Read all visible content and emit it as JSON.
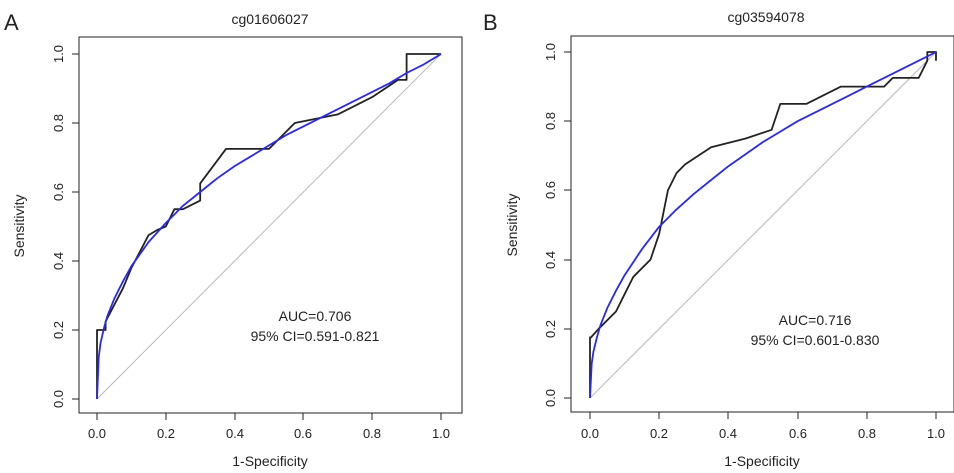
{
  "panels": [
    {
      "letter": "A",
      "chart_data": {
        "type": "line",
        "title": "cg01606027",
        "xlabel": "1-Specificity",
        "ylabel": "Sensitivity",
        "xlim": [
          0,
          1
        ],
        "ylim": [
          0,
          1
        ],
        "xticks": [
          "0.0",
          "0.2",
          "0.4",
          "0.6",
          "0.8",
          "1.0"
        ],
        "yticks": [
          "0.0",
          "0.2",
          "0.4",
          "0.6",
          "0.8",
          "1.0"
        ],
        "grid": false,
        "annotations": [
          "AUC=0.706",
          "95% CI=0.591-0.821"
        ],
        "colors": {
          "empirical": "#222222",
          "smoothed": "#2a2ae6",
          "reference": "#b8b8b8"
        },
        "series": [
          {
            "type": "step",
            "x": [
              0,
              0,
              0.003,
              0.003,
              0.025,
              0.025,
              0.075,
              0.1,
              0.15,
              0.175,
              0.2,
              0.225,
              0.25,
              0.3,
              0.3,
              0.375,
              0.425,
              0.5,
              0.575,
              0.7,
              0.8,
              0.875,
              0.9,
              0.9,
              1.0,
              1.0
            ],
            "y": [
              0,
              0.2,
              0.2,
              0.2,
              0.2,
              0.225,
              0.32,
              0.38,
              0.475,
              0.49,
              0.5,
              0.55,
              0.55,
              0.575,
              0.625,
              0.725,
              0.725,
              0.725,
              0.8,
              0.825,
              0.875,
              0.925,
              0.925,
              1.0,
              1.0,
              1.0
            ]
          },
          {
            "type": "smooth",
            "x": [
              0,
              0.005,
              0.01,
              0.02,
              0.03,
              0.05,
              0.075,
              0.1,
              0.15,
              0.2,
              0.25,
              0.3,
              0.35,
              0.4,
              0.45,
              0.5,
              0.55,
              0.6,
              0.65,
              0.7,
              0.75,
              0.8,
              0.85,
              0.9,
              0.95,
              1.0
            ],
            "y": [
              0,
              0.12,
              0.16,
              0.205,
              0.24,
              0.29,
              0.34,
              0.385,
              0.455,
              0.51,
              0.56,
              0.6,
              0.64,
              0.675,
              0.705,
              0.735,
              0.765,
              0.79,
              0.815,
              0.84,
              0.865,
              0.89,
              0.915,
              0.945,
              0.97,
              1.0
            ]
          }
        ]
      }
    },
    {
      "letter": "B",
      "chart_data": {
        "type": "line",
        "title": "cg03594078",
        "xlabel": "1-Specificity",
        "ylabel": "Sensitivity",
        "xlim": [
          0,
          1
        ],
        "ylim": [
          0,
          1
        ],
        "xticks": [
          "0.0",
          "0.2",
          "0.4",
          "0.6",
          "0.8",
          "1.0"
        ],
        "yticks": [
          "0.0",
          "0.2",
          "0.4",
          "0.6",
          "0.8",
          "1.0"
        ],
        "grid": false,
        "annotations": [
          "AUC=0.716",
          "95% CI=0.601-0.830"
        ],
        "colors": {
          "empirical": "#222222",
          "smoothed": "#2a2ae6",
          "reference": "#b8b8b8"
        },
        "series": [
          {
            "type": "step",
            "x": [
              0,
              0,
              0.003,
              0.025,
              0.075,
              0.1,
              0.125,
              0.175,
              0.2,
              0.225,
              0.25,
              0.275,
              0.35,
              0.45,
              0.525,
              0.55,
              0.625,
              0.725,
              0.8,
              0.85,
              0.875,
              0.95,
              0.975,
              0.975,
              1.0,
              1.0
            ],
            "y": [
              0,
              0.175,
              0.175,
              0.2,
              0.25,
              0.3,
              0.35,
              0.4,
              0.475,
              0.6,
              0.65,
              0.675,
              0.725,
              0.75,
              0.775,
              0.85,
              0.85,
              0.9,
              0.9,
              0.9,
              0.925,
              0.925,
              0.975,
              1.0,
              1.0,
              0.975
            ]
          },
          {
            "type": "smooth",
            "x": [
              0,
              0.005,
              0.01,
              0.02,
              0.03,
              0.05,
              0.075,
              0.1,
              0.15,
              0.2,
              0.25,
              0.3,
              0.35,
              0.4,
              0.45,
              0.5,
              0.55,
              0.6,
              0.65,
              0.7,
              0.75,
              0.8,
              0.85,
              0.9,
              0.95,
              1.0
            ],
            "y": [
              0,
              0.1,
              0.135,
              0.175,
              0.21,
              0.26,
              0.31,
              0.355,
              0.43,
              0.495,
              0.545,
              0.59,
              0.63,
              0.67,
              0.705,
              0.74,
              0.77,
              0.8,
              0.825,
              0.85,
              0.875,
              0.9,
              0.925,
              0.95,
              0.975,
              1.0
            ]
          }
        ]
      }
    }
  ]
}
